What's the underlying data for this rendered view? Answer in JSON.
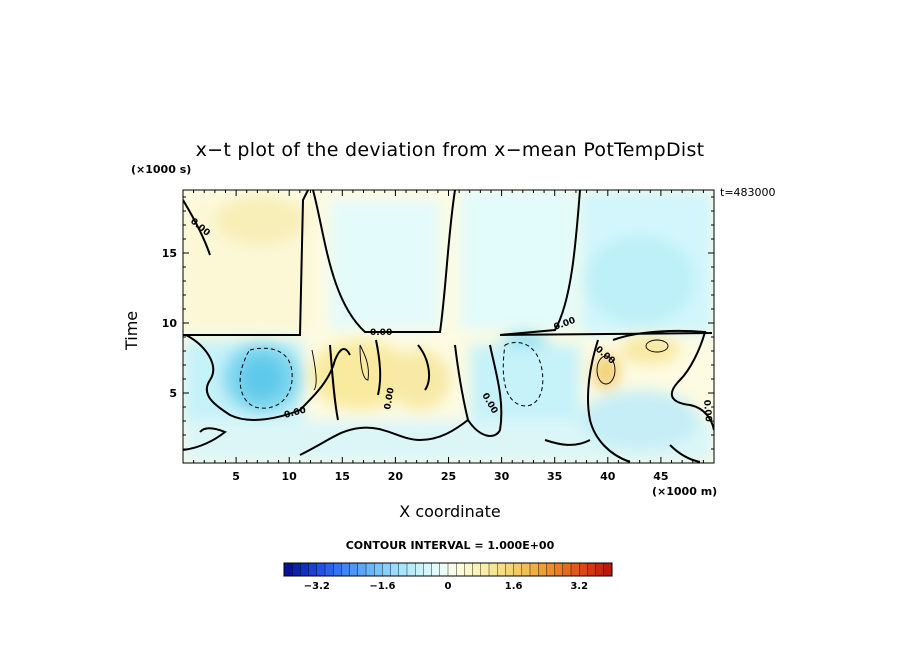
{
  "chart_data": {
    "type": "heatmap",
    "title": "x−t plot of the deviation from x−mean PotTempDist",
    "xlabel": "X coordinate",
    "ylabel": "Time",
    "x_unit_label": "(×1000 m)",
    "y_unit_label": "(×1000 s)",
    "timestamp": "t=483000",
    "xlim": [
      0,
      50
    ],
    "ylim": [
      0,
      19.5
    ],
    "x_ticks": [
      5,
      10,
      15,
      20,
      25,
      30,
      35,
      40,
      45
    ],
    "y_ticks": [
      5,
      10,
      15
    ],
    "contour_interval_label": "CONTOUR INTERVAL = 1.000E+00",
    "contour_label_value": "0.00",
    "colorbar": {
      "min": -4,
      "max": 4,
      "labels": [
        "−3.2",
        "−1.6",
        "0",
        "1.6",
        "3.2"
      ],
      "label_values": [
        -3.2,
        -1.6,
        0,
        1.6,
        3.2
      ],
      "colors": [
        "#08088f",
        "#0e2fc0",
        "#1f55e6",
        "#3b7ef2",
        "#5aa4f6",
        "#7cc7fa",
        "#a2e2fb",
        "#c8f2fb",
        "#e6fbfb",
        "#fdfde0",
        "#fbf3b8",
        "#f7e490",
        "#f4cd6a",
        "#f0ad44",
        "#ec8628",
        "#e35b17",
        "#d2330f",
        "#b51208"
      ]
    },
    "features": [
      {
        "region": "lower (t < 9.5)",
        "x_range": [
          6,
          10
        ],
        "t_range": [
          5,
          8
        ],
        "value_min": -2
      },
      {
        "region": "lower (t < 9.5)",
        "x_range": [
          30,
          35
        ],
        "t_range": [
          5,
          9
        ],
        "value_min": -2
      },
      {
        "region": "lower (t < 9.5)",
        "x_range": [
          39,
          42
        ],
        "t_range": [
          6,
          8
        ],
        "value_max": 1
      }
    ]
  }
}
